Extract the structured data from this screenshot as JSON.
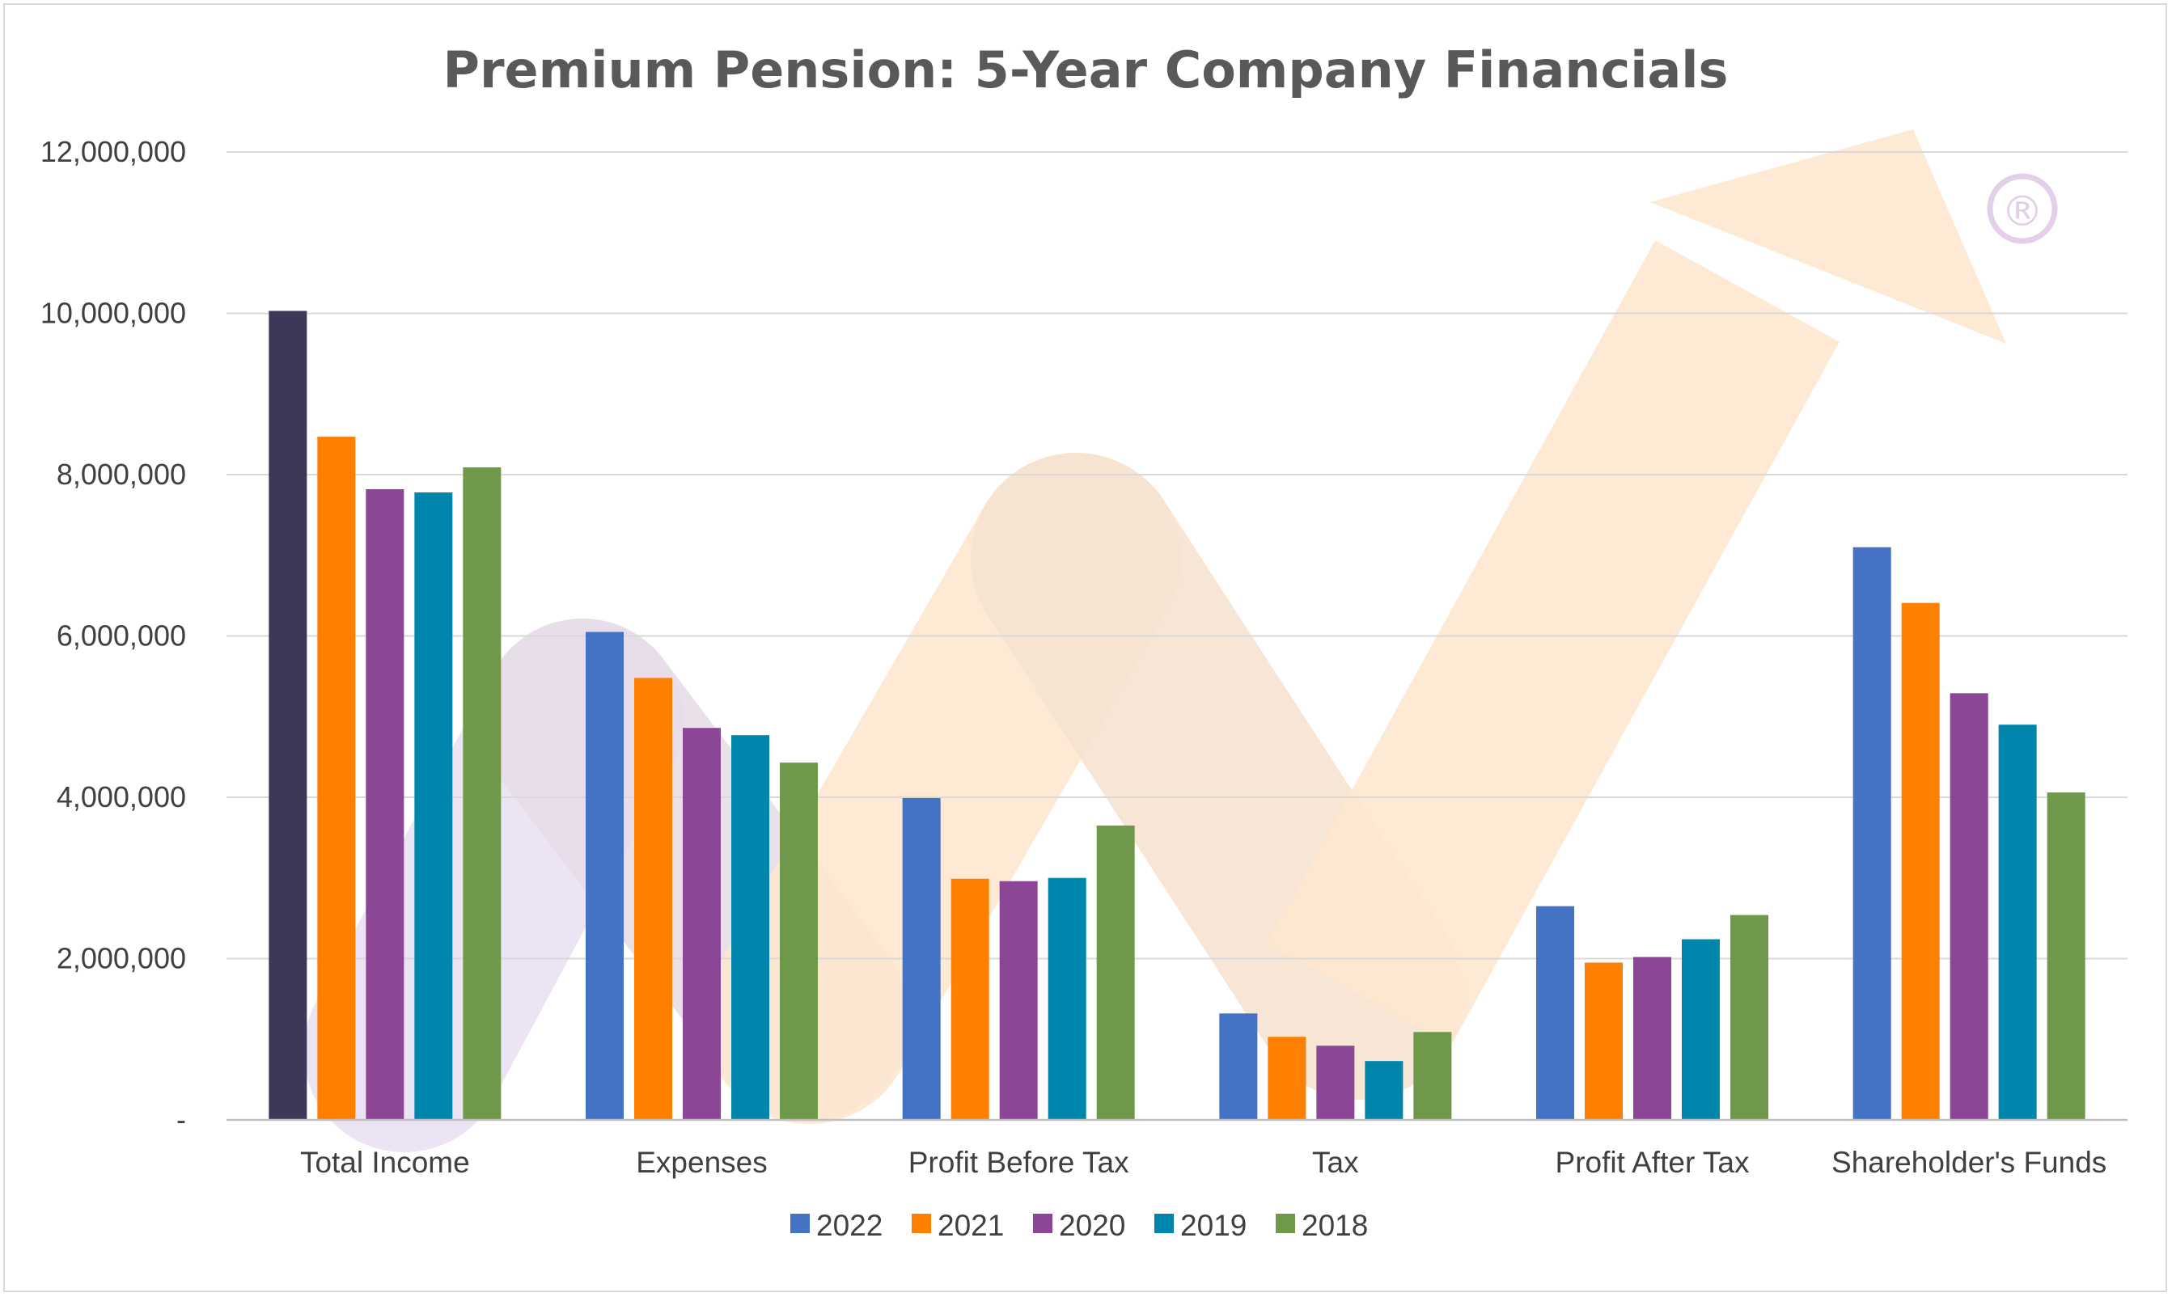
{
  "chart_data": {
    "type": "bar",
    "title": "Premium Pension: 5-Year Company Financials",
    "xlabel": "",
    "ylabel": "",
    "ylim": [
      0,
      12000000
    ],
    "yticks": [
      0,
      2000000,
      4000000,
      6000000,
      8000000,
      10000000,
      12000000
    ],
    "ytick_labels": [
      "-",
      "2,000,000",
      "4,000,000",
      "6,000,000",
      "8,000,000",
      "10,000,000",
      "12,000,000"
    ],
    "categories": [
      "Total Income",
      "Expenses",
      "Profit Before Tax",
      "Tax",
      "Profit After Tax",
      "Shareholder's Funds"
    ],
    "series": [
      {
        "name": "2022",
        "color": "#4472c4",
        "values": [
          10030000,
          6050000,
          3990000,
          1320000,
          2650000,
          7100000
        ]
      },
      {
        "name": "2021",
        "color": "#ff8000",
        "values": [
          8470000,
          5480000,
          2990000,
          1030000,
          1950000,
          6410000
        ]
      },
      {
        "name": "2020",
        "color": "#8b4795",
        "values": [
          7820000,
          4860000,
          2960000,
          920000,
          2020000,
          5290000
        ]
      },
      {
        "name": "2019",
        "color": "#0086ad",
        "values": [
          7780000,
          4770000,
          3000000,
          730000,
          2240000,
          4900000
        ]
      },
      {
        "name": "2018",
        "color": "#70984a",
        "values": [
          8090000,
          4430000,
          3650000,
          1090000,
          2540000,
          4060000
        ]
      }
    ],
    "point_colors": {
      "0.0": "#3d3858"
    },
    "grid": true,
    "legend": "bottom",
    "watermark": {
      "symbol": "®",
      "arrow_color": "#fde7cf",
      "swoosh_color": "#ebe3f4"
    }
  }
}
